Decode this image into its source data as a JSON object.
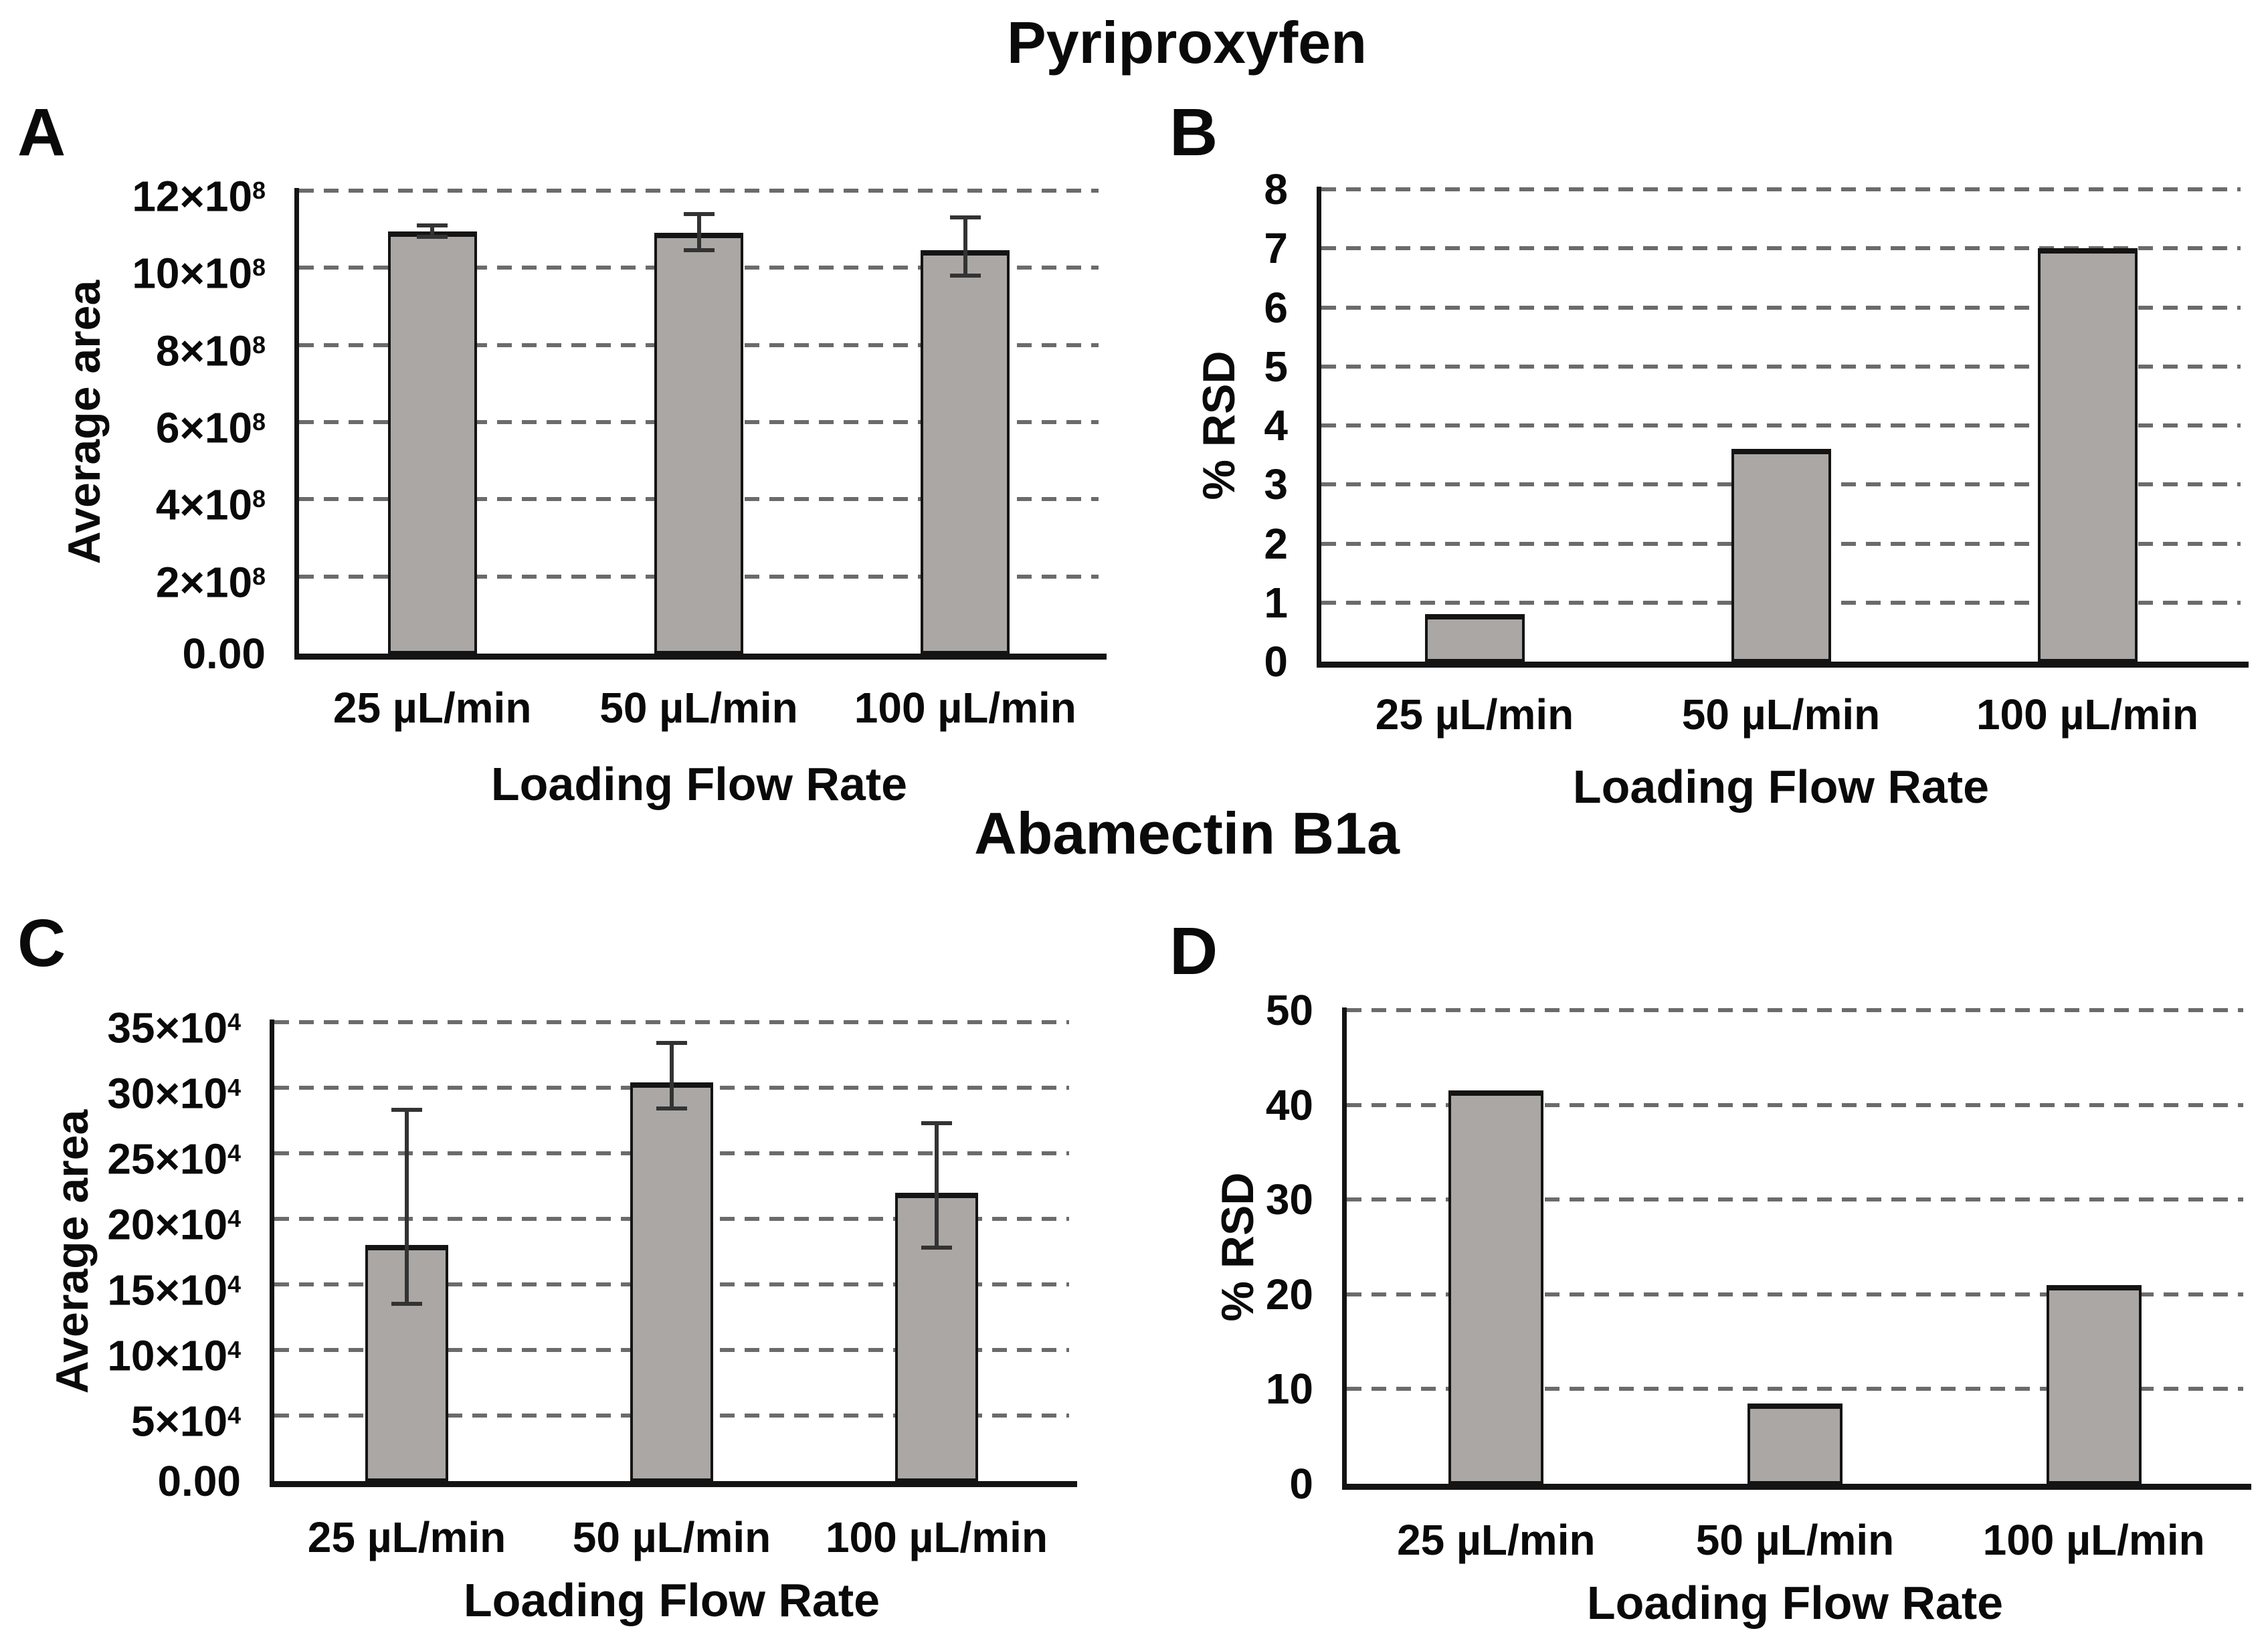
{
  "titles": {
    "top": "Pyriproxyfen",
    "middle": "Abamectin B1a"
  },
  "colors": {
    "bar_fill": "#aaa7a4",
    "bar_border": "#141414",
    "gridline": "#6b6b6b",
    "axis": "#141414",
    "error_bar": "#333333",
    "background": "#ffffff",
    "text": "#0a0a0a"
  },
  "chart_data": [
    {
      "panel_label": "A",
      "type": "bar",
      "title": "Pyriproxyfen",
      "ylabel": "Average area",
      "xlabel": "Loading Flow Rate",
      "categories": [
        "25 µL/min",
        "50 µL/min",
        "100 µL/min"
      ],
      "values": [
        10.95,
        10.9,
        10.45
      ],
      "value_unit": "×10^8",
      "errors_up": [
        0.15,
        0.5,
        0.85
      ],
      "errors_down": [
        0.15,
        0.45,
        0.65
      ],
      "ylim": [
        0,
        12
      ],
      "ytick_step": 2,
      "yticks": [
        {
          "t": "12×10",
          "s": "8"
        },
        {
          "t": "10×10",
          "s": "8"
        },
        {
          "t": "8×10",
          "s": "8"
        },
        {
          "t": "6×10",
          "s": "8"
        },
        {
          "t": "4×10",
          "s": "8"
        },
        {
          "t": "2×10",
          "s": "8"
        },
        {
          "t": "0.00",
          "s": ""
        }
      ],
      "grid": "dashed-horizontal",
      "legend": "none"
    },
    {
      "panel_label": "B",
      "type": "bar",
      "title": "Pyriproxyfen",
      "ylabel": "% RSD",
      "xlabel": "Loading Flow Rate",
      "categories": [
        "25 µL/min",
        "50 µL/min",
        "100 µL/min"
      ],
      "values": [
        0.8,
        3.6,
        7.0
      ],
      "value_unit": "%",
      "errors_up": null,
      "errors_down": null,
      "ylim": [
        0,
        8
      ],
      "ytick_step": 1,
      "yticks": [
        {
          "t": "8",
          "s": ""
        },
        {
          "t": "7",
          "s": ""
        },
        {
          "t": "6",
          "s": ""
        },
        {
          "t": "5",
          "s": ""
        },
        {
          "t": "4",
          "s": ""
        },
        {
          "t": "3",
          "s": ""
        },
        {
          "t": "2",
          "s": ""
        },
        {
          "t": "1",
          "s": ""
        },
        {
          "t": "0",
          "s": ""
        }
      ],
      "grid": "dashed-horizontal",
      "legend": "none"
    },
    {
      "panel_label": "C",
      "type": "bar",
      "title": "Abamectin B1a",
      "ylabel": "Average area",
      "xlabel": "Loading Flow Rate",
      "categories": [
        "25 µL/min",
        "50 µL/min",
        "100 µL/min"
      ],
      "values": [
        18.0,
        30.4,
        22.0
      ],
      "value_unit": "×10^4",
      "errors_up": [
        10.3,
        3.0,
        5.3
      ],
      "errors_down": [
        4.5,
        2.0,
        4.2
      ],
      "ylim": [
        0,
        35
      ],
      "ytick_step": 5,
      "yticks": [
        {
          "t": "35×10",
          "s": "4"
        },
        {
          "t": "30×10",
          "s": "4"
        },
        {
          "t": "25×10",
          "s": "4"
        },
        {
          "t": "20×10",
          "s": "4"
        },
        {
          "t": "15×10",
          "s": "4"
        },
        {
          "t": "10×10",
          "s": "4"
        },
        {
          "t": "5×10",
          "s": "4"
        },
        {
          "t": "0.00",
          "s": ""
        }
      ],
      "grid": "dashed-horizontal",
      "legend": "none"
    },
    {
      "panel_label": "D",
      "type": "bar",
      "title": "Abamectin B1a",
      "ylabel": "% RSD",
      "xlabel": "Loading Flow Rate",
      "categories": [
        "25 µL/min",
        "50 µL/min",
        "100 µL/min"
      ],
      "values": [
        41.5,
        8.5,
        21.0
      ],
      "value_unit": "%",
      "errors_up": null,
      "errors_down": null,
      "ylim": [
        0,
        50
      ],
      "ytick_step": 10,
      "yticks": [
        {
          "t": "50",
          "s": ""
        },
        {
          "t": "40",
          "s": ""
        },
        {
          "t": "30",
          "s": ""
        },
        {
          "t": "20",
          "s": ""
        },
        {
          "t": "10",
          "s": ""
        },
        {
          "t": "0",
          "s": ""
        }
      ],
      "grid": "dashed-horizontal",
      "legend": "none"
    }
  ]
}
